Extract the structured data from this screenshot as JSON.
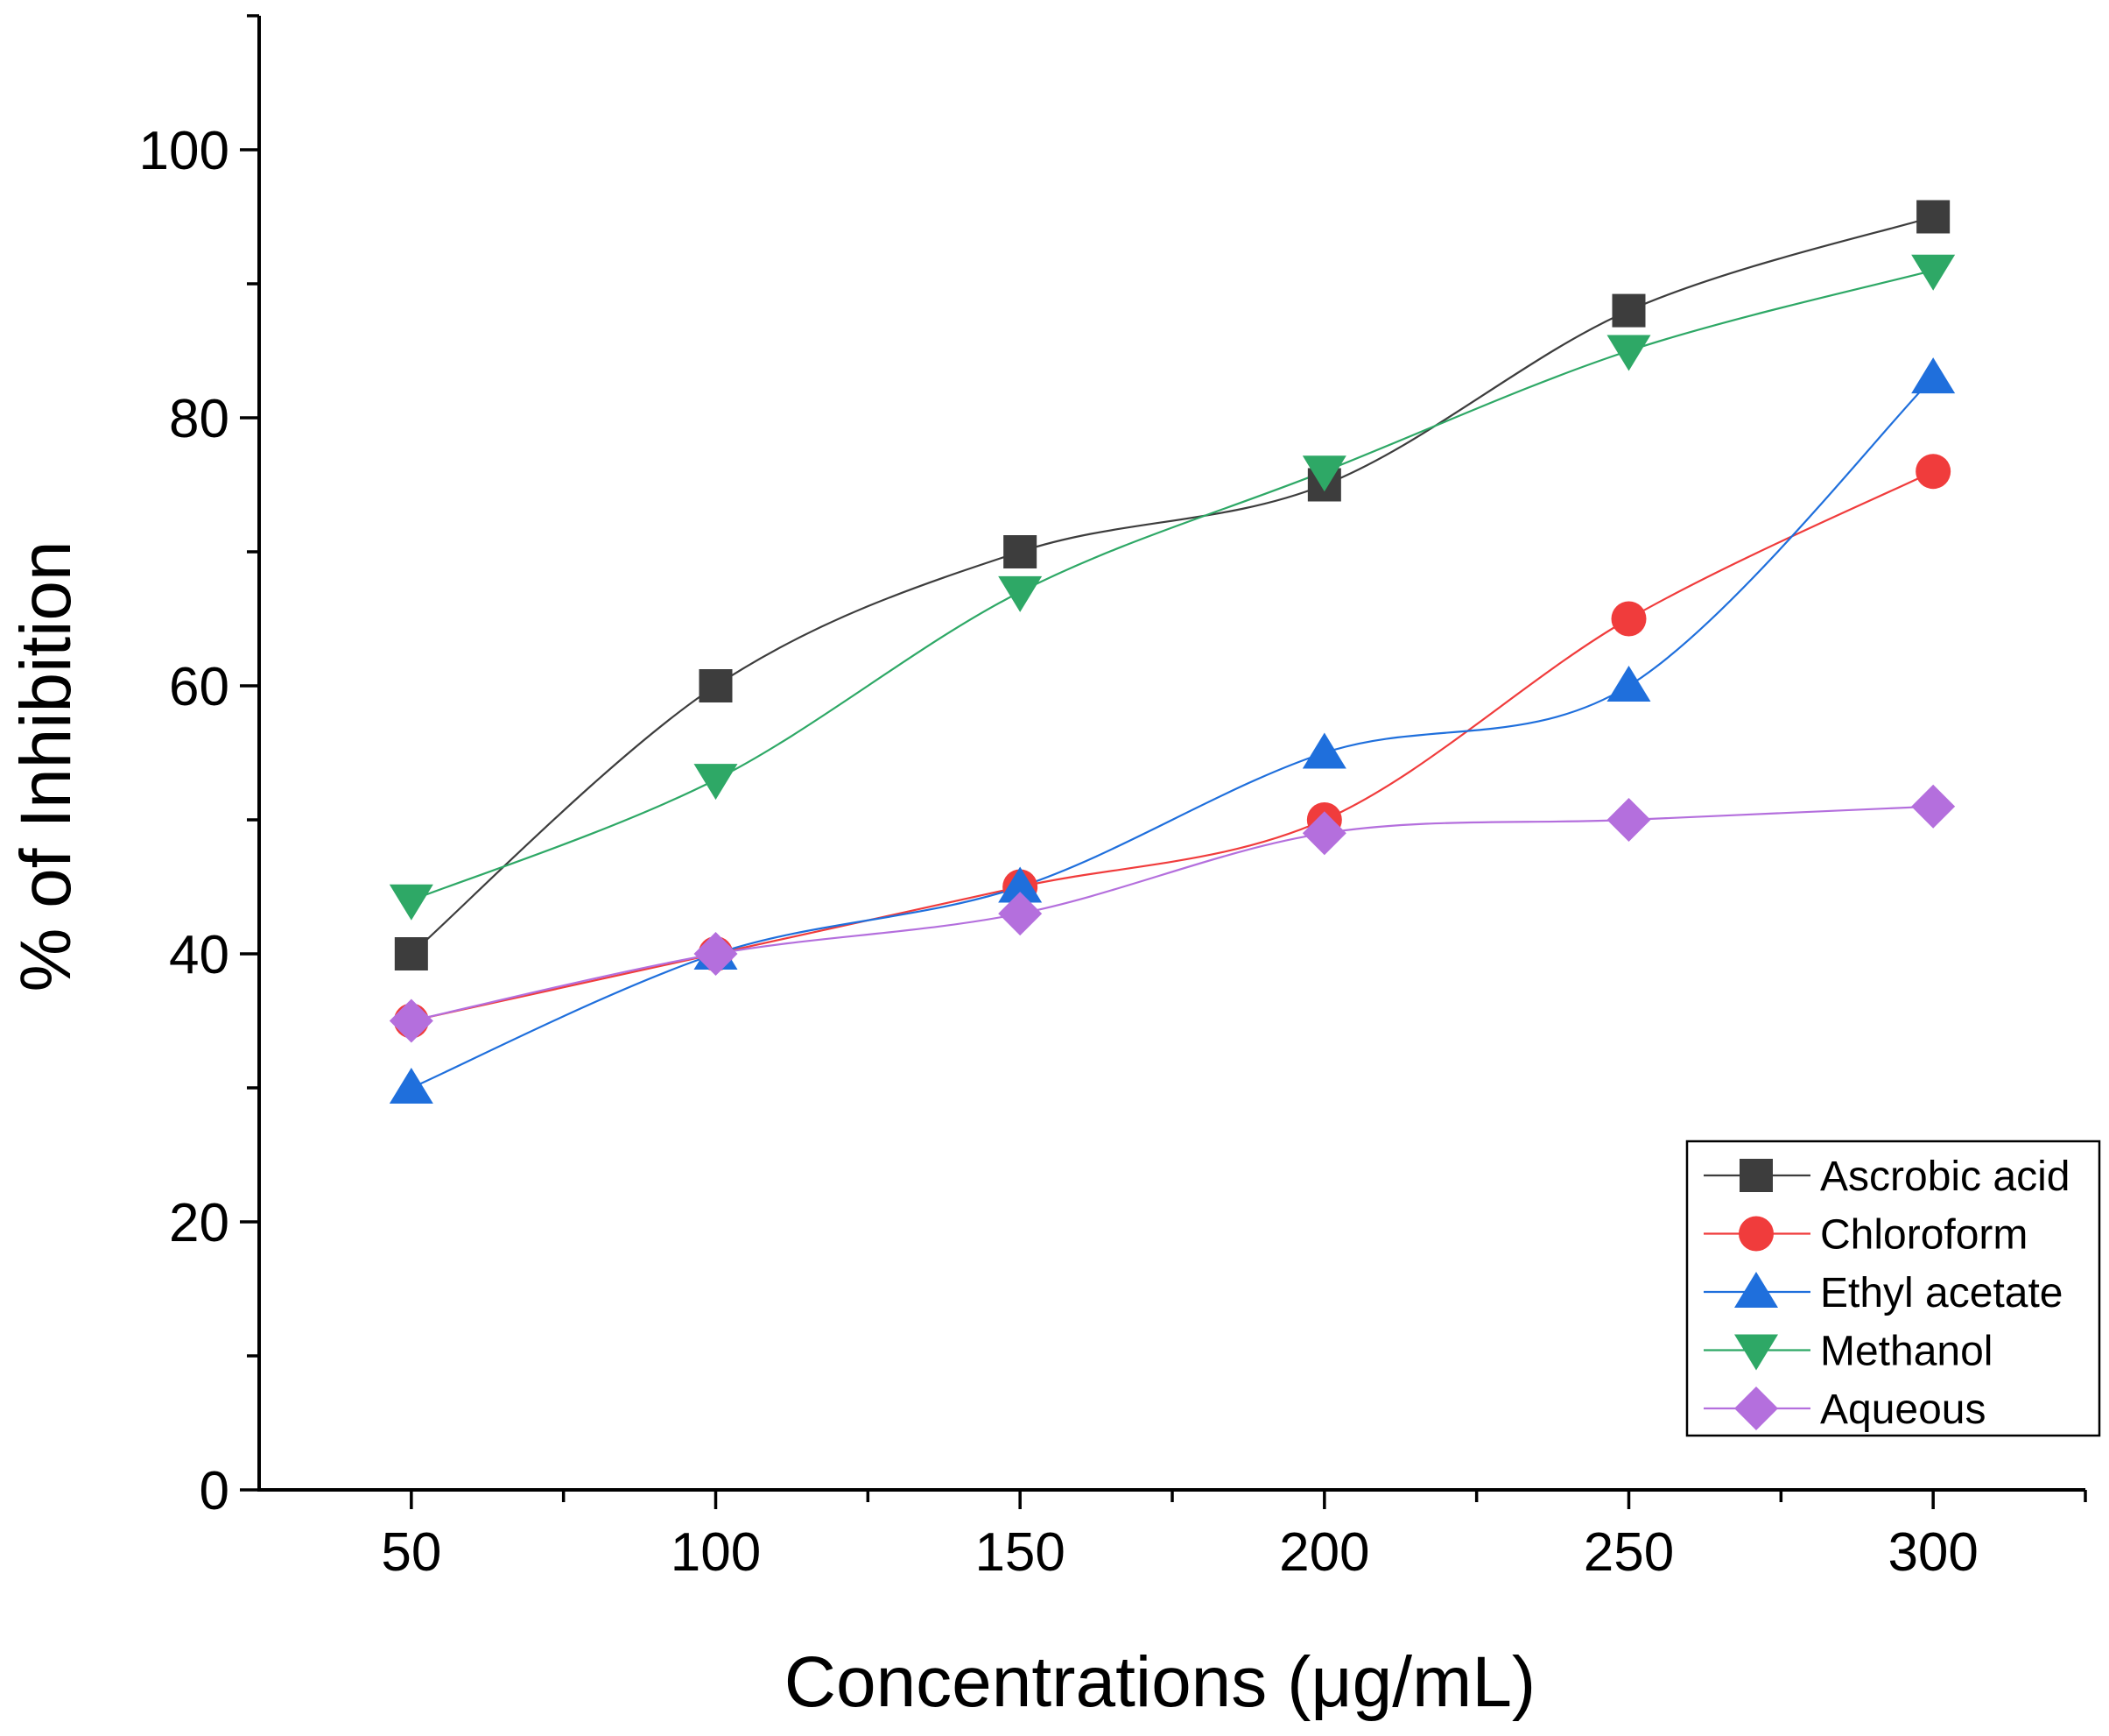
{
  "chart_data": {
    "type": "line",
    "title": "",
    "xlabel": "Concentrations (μg/mL)",
    "ylabel": "% of Inhibition",
    "xlim": [
      25,
      325
    ],
    "ylim": [
      0,
      110
    ],
    "x": [
      50,
      100,
      150,
      200,
      250,
      300
    ],
    "x_ticks": [
      "50",
      "100",
      "150",
      "200",
      "250",
      "300"
    ],
    "y_ticks": [
      "0",
      "20",
      "40",
      "60",
      "80",
      "100"
    ],
    "grid": false,
    "legend_position": "bottom-right",
    "series": [
      {
        "name": "Ascrobic acid",
        "marker": "square",
        "color": "#3d3d3d",
        "values": [
          40,
          60,
          70,
          75,
          88,
          95
        ]
      },
      {
        "name": "Chloroform",
        "marker": "circle",
        "color": "#f03c3c",
        "values": [
          35,
          40,
          45,
          50,
          65,
          76
        ]
      },
      {
        "name": "Ethyl acetate",
        "marker": "triangle-up",
        "color": "#1f6fdc",
        "values": [
          30,
          40,
          45,
          55,
          60,
          83
        ]
      },
      {
        "name": "Methanol",
        "marker": "triangle-down",
        "color": "#2ea866",
        "values": [
          44,
          53,
          67,
          76,
          85,
          91
        ]
      },
      {
        "name": "Aqueous",
        "marker": "diamond",
        "color": "#b46fdd",
        "values": [
          35,
          40,
          43,
          49,
          50,
          51
        ]
      }
    ]
  }
}
